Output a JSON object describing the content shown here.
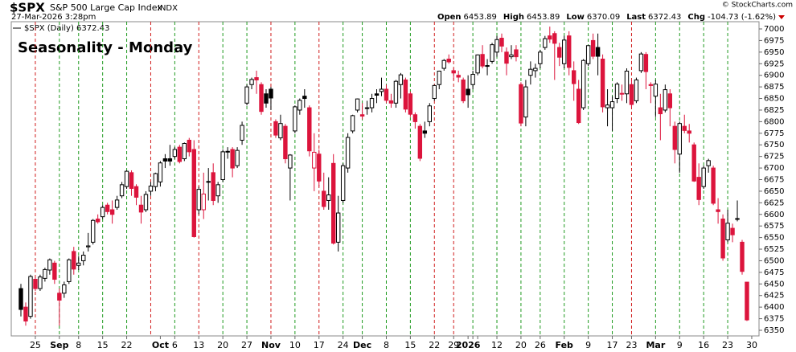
{
  "header": {
    "symbol": "$SPX",
    "name": "S&P 500 Large Cap Index",
    "exchange": "INDX",
    "datetime": "27-Mar-2026 3:28pm",
    "copyright": "© StockCharts.com",
    "quote": [
      {
        "label": "Open",
        "value": 6453.89
      },
      {
        "label": "High",
        "value": 6453.89
      },
      {
        "label": "Low",
        "value": 6370.09
      },
      {
        "label": "Last",
        "value": 6372.43
      },
      {
        "label": "Chg",
        "value": "-104.73 (-1.62%)"
      }
    ]
  },
  "chart_data": {
    "type": "candlestick",
    "legend": "$SPX (Daily) 6372.43",
    "title": "Seasonality - Monday",
    "title_color": "#1a1ad6",
    "up_color": "#000000",
    "down_color": "#dc143c",
    "wick_color": "#000000",
    "categories": [
      null,
      null,
      null,
      "25",
      null,
      null,
      null,
      null,
      "Sep",
      null,
      null,
      null,
      "8",
      null,
      null,
      null,
      null,
      "15",
      null,
      null,
      null,
      null,
      "22",
      null,
      null,
      null,
      null,
      null,
      null,
      "Oct",
      null,
      null,
      "6",
      null,
      null,
      null,
      null,
      "13",
      null,
      null,
      null,
      null,
      "20",
      null,
      null,
      null,
      null,
      "27",
      null,
      null,
      null,
      null,
      "Nov",
      null,
      null,
      null,
      null,
      "10",
      null,
      null,
      null,
      null,
      "17",
      null,
      null,
      null,
      null,
      "24",
      null,
      null,
      null,
      "Dec",
      null,
      null,
      null,
      null,
      "8",
      null,
      null,
      null,
      null,
      "15",
      null,
      null,
      null,
      null,
      "22",
      null,
      null,
      null,
      "29",
      null,
      null,
      "2026",
      "",
      "",
      null,
      null,
      null,
      "12",
      null,
      null,
      null,
      null,
      "20",
      null,
      null,
      null,
      "26",
      null,
      null,
      null,
      null,
      "Feb",
      null,
      null,
      null,
      null,
      "9",
      null,
      null,
      null,
      null,
      "17",
      null,
      null,
      null,
      "23",
      null,
      null,
      null,
      null,
      "Mar",
      null,
      null,
      null,
      null,
      "9",
      null,
      null,
      null,
      null,
      "16",
      null,
      null,
      null,
      null,
      "23",
      null,
      null,
      null,
      null,
      "30"
    ],
    "open": [
      6440,
      6400,
      6380,
      6460,
      6440,
      6462,
      6480,
      6495,
      6430,
      6430,
      6455,
      6520,
      6490,
      6500,
      6530,
      6540,
      6590,
      6595,
      6620,
      6610,
      6615,
      6640,
      6660,
      6690,
      6660,
      6620,
      6610,
      6650,
      6660,
      6670,
      6720,
      6720,
      6725,
      6745,
      6720,
      6760,
      6740,
      6610,
      6610,
      6670,
      6690,
      6640,
      6675,
      6735,
      6740,
      6705,
      6760,
      6840,
      6880,
      6895,
      6880,
      6860,
      6870,
      6800,
      6765,
      6790,
      6700,
      6780,
      6825,
      6855,
      6830,
      6700,
      6730,
      6650,
      6630,
      6710,
      6540,
      6630,
      6700,
      6780,
      6825,
      6815,
      6830,
      6830,
      6860,
      6865,
      6870,
      6845,
      6840,
      6880,
      6890,
      6860,
      6815,
      6790,
      6780,
      6800,
      6850,
      6880,
      6915,
      6935,
      6910,
      6900,
      6890,
      6870,
      6880,
      6905,
      6945,
      6920,
      6930,
      6950,
      6980,
      6950,
      6940,
      6955,
      6880,
      6810,
      6900,
      6910,
      6925,
      6960,
      6985,
      6990,
      6960,
      6925,
      6985,
      6910,
      6870,
      6830,
      6925,
      6975,
      6960,
      6935,
      6830,
      6830,
      6850,
      6860,
      6860,
      6880,
      6845,
      6910,
      6945,
      6880,
      6855,
      6830,
      6825,
      6860,
      6790,
      6730,
      6790,
      6780,
      6750,
      6680,
      6660,
      6705,
      6700,
      6610,
      6590,
      6545,
      6570,
      6590,
      6540,
      6453.89,
      null
    ],
    "high": [
      6450,
      6410,
      6470,
      6465,
      6470,
      6485,
      6505,
      6500,
      6440,
      6455,
      6505,
      6530,
      6510,
      6520,
      6560,
      6590,
      6600,
      6620,
      6625,
      6630,
      6640,
      6670,
      6695,
      6695,
      6665,
      6640,
      6650,
      6670,
      6690,
      6715,
      6730,
      6750,
      6745,
      6750,
      6755,
      6765,
      6760,
      6660,
      6690,
      6700,
      6710,
      6670,
      6740,
      6745,
      6745,
      6745,
      6800,
      6880,
      6895,
      6910,
      6885,
      6870,
      6875,
      6805,
      6815,
      6795,
      6730,
      6835,
      6850,
      6870,
      6835,
      6775,
      6740,
      6690,
      6680,
      6730,
      6640,
      6710,
      6775,
      6815,
      6850,
      6840,
      6845,
      6860,
      6870,
      6895,
      6880,
      6860,
      6890,
      6905,
      6895,
      6865,
      6820,
      6795,
      6800,
      6840,
      6880,
      6910,
      6935,
      6945,
      6915,
      6910,
      6895,
      6900,
      6910,
      6945,
      6965,
      6935,
      6970,
      6985,
      6990,
      6960,
      6965,
      6965,
      6885,
      6890,
      6930,
      6925,
      6955,
      6985,
      7005,
      6995,
      6970,
      6985,
      6995,
      6930,
      6890,
      6935,
      6965,
      6990,
      6990,
      6945,
      6870,
      6855,
      6885,
      6880,
      6915,
      6890,
      6895,
      6950,
      6950,
      6885,
      6890,
      6860,
      6880,
      6870,
      6800,
      6800,
      6815,
      6795,
      6755,
      6710,
      6705,
      6720,
      6705,
      6635,
      6600,
      6610,
      6580,
      6630,
      6545,
      6453.89,
      null
    ],
    "low": [
      6380,
      6360,
      6375,
      6435,
      6435,
      6455,
      6470,
      6450,
      6360,
      6420,
      6450,
      6470,
      6480,
      6490,
      6520,
      6535,
      6580,
      6590,
      6600,
      6580,
      6610,
      6635,
      6655,
      6640,
      6620,
      6580,
      6605,
      6640,
      6650,
      6660,
      6700,
      6705,
      6720,
      6710,
      6715,
      6725,
      6550,
      6600,
      6590,
      6630,
      6620,
      6625,
      6670,
      6720,
      6680,
      6700,
      6750,
      6835,
      6870,
      6860,
      6815,
      6830,
      6825,
      6765,
      6760,
      6710,
      6630,
      6775,
      6815,
      6830,
      6725,
      6650,
      6660,
      6610,
      6610,
      6535,
      6520,
      6625,
      6690,
      6775,
      6820,
      6805,
      6815,
      6820,
      6840,
      6855,
      6840,
      6830,
      6830,
      6850,
      6820,
      6810,
      6785,
      6715,
      6765,
      6790,
      6845,
      6870,
      6910,
      6925,
      6890,
      6885,
      6840,
      6830,
      6870,
      6900,
      6915,
      6900,
      6925,
      6940,
      6950,
      6900,
      6935,
      6930,
      6790,
      6790,
      6880,
      6895,
      6915,
      6955,
      6970,
      6890,
      6920,
      6915,
      6900,
      6845,
      6795,
      6825,
      6920,
      6935,
      6900,
      6820,
      6790,
      6780,
      6840,
      6845,
      6840,
      6830,
      6840,
      6905,
      6870,
      6840,
      6810,
      6760,
      6820,
      6790,
      6710,
      6690,
      6775,
      6755,
      6670,
      6620,
      6655,
      6690,
      6620,
      6580,
      6500,
      6540,
      6540,
      6585,
      6470,
      6370.09,
      null
    ],
    "close": [
      6395,
      6370,
      6466,
      6440,
      6465,
      6481,
      6502,
      6460,
      6415,
      6448,
      6502,
      6482,
      6495,
      6512,
      6532,
      6587,
      6584,
      6615,
      6606,
      6600,
      6631,
      6664,
      6693,
      6656,
      6637,
      6605,
      6643,
      6661,
      6688,
      6711,
      6715,
      6715,
      6740,
      6714,
      6753,
      6735,
      6552,
      6654,
      6644,
      6671,
      6630,
      6664,
      6735,
      6736,
      6700,
      6738,
      6792,
      6875,
      6891,
      6890,
      6822,
      6840,
      6851,
      6771,
      6796,
      6720,
      6728,
      6832,
      6846,
      6850,
      6737,
      6734,
      6672,
      6617,
      6642,
      6538,
      6603,
      6705,
      6766,
      6813,
      6849,
      6812,
      6829,
      6850,
      6857,
      6870,
      6846,
      6840,
      6887,
      6901,
      6827,
      6816,
      6800,
      6721,
      6775,
      6834,
      6878,
      6909,
      6932,
      6929,
      6905,
      6896,
      6845,
      6858,
      6902,
      6944,
      6920,
      6921,
      6966,
      6977,
      6963,
      6926,
      6944,
      6940,
      6797,
      6875,
      6913,
      6915,
      6950,
      6979,
      6978,
      6969,
      6939,
      6976,
      6917,
      6882,
      6798,
      6932,
      6964,
      6941,
      6941,
      6832,
      6836,
      6843,
      6881,
      6861,
      6909,
      6837,
      6890,
      6946,
      6908,
      6878,
      6881,
      6817,
      6869,
      6830,
      6740,
      6796,
      6781,
      6775,
      6672,
      6632,
      6700,
      6716,
      6624,
      6606,
      6506,
      6581,
      6556,
      6591,
      6477,
      6372.43,
      null
    ],
    "vlines": [
      null,
      null,
      null,
      "#d01c1c",
      null,
      null,
      null,
      null,
      "#1f9a1f",
      null,
      null,
      null,
      "#1f9a1f",
      null,
      null,
      null,
      null,
      "#1f9a1f",
      null,
      null,
      null,
      null,
      "#1f9a1f",
      null,
      null,
      null,
      null,
      "#d01c1c",
      null,
      null,
      null,
      null,
      "#1f9a1f",
      null,
      null,
      null,
      null,
      "#d01c1c",
      null,
      null,
      null,
      null,
      "#1f9a1f",
      null,
      null,
      null,
      null,
      "#1f9a1f",
      null,
      null,
      null,
      null,
      "#d01c1c",
      null,
      null,
      null,
      null,
      "#1f9a1f",
      null,
      null,
      null,
      null,
      "#d01c1c",
      null,
      null,
      null,
      null,
      "#1f9a1f",
      null,
      null,
      null,
      "#1f9a1f",
      null,
      null,
      null,
      null,
      "#1f9a1f",
      null,
      null,
      null,
      null,
      "#1f9a1f",
      null,
      null,
      null,
      null,
      "#d01c1c",
      null,
      null,
      null,
      "#d01c1c",
      null,
      null,
      null,
      "#1f9a1f",
      null,
      null,
      null,
      null,
      "#1f9a1f",
      null,
      null,
      null,
      null,
      "#1f9a1f",
      null,
      null,
      null,
      "#1f9a1f",
      null,
      null,
      null,
      null,
      "#1f9a1f",
      null,
      null,
      null,
      null,
      "#1f9a1f",
      null,
      null,
      null,
      null,
      "#1f9a1f",
      null,
      null,
      null,
      "#d01c1c",
      null,
      null,
      null,
      null,
      "#1f9a1f",
      null,
      null,
      null,
      null,
      "#1f9a1f",
      null,
      null,
      null,
      null,
      "#1f9a1f",
      null,
      null,
      null,
      null,
      "#1f9a1f",
      null,
      null,
      null,
      null,
      null
    ],
    "ylim": [
      6350,
      7000
    ],
    "yticks": [
      6350,
      6375,
      6400,
      6425,
      6450,
      6475,
      6500,
      6525,
      6550,
      6575,
      6600,
      6625,
      6650,
      6675,
      6700,
      6725,
      6750,
      6775,
      6800,
      6825,
      6850,
      6875,
      6900,
      6925,
      6950,
      6975,
      7000
    ]
  }
}
